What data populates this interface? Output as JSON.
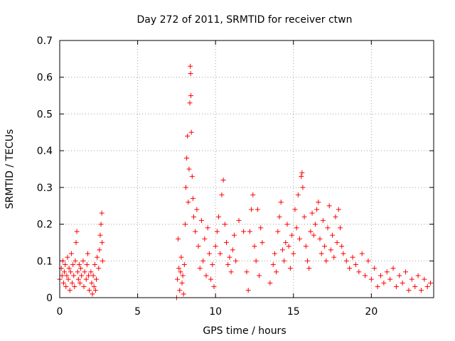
{
  "chart_data": {
    "type": "scatter",
    "title": "Day 272 of 2011, SRMTID for receiver ctwn",
    "xlabel": "GPS time / hours",
    "ylabel": "SRMTID / TECUs",
    "xlim": [
      0,
      24
    ],
    "ylim": [
      0,
      0.7
    ],
    "xticks": [
      0,
      5,
      10,
      15,
      20
    ],
    "xtick_labels": [
      "0",
      "5",
      "10",
      "15",
      "20"
    ],
    "yticks": [
      0,
      0.1,
      0.2,
      0.3,
      0.4,
      0.5,
      0.6,
      0.7
    ],
    "ytick_labels": [
      "0",
      "0.1",
      "0.2",
      "0.3",
      "0.4",
      "0.5",
      "0.6",
      "0.7"
    ],
    "grid": true,
    "marker": "+",
    "color": "#ff0000",
    "series": [
      {
        "name": "SRMTID",
        "points": [
          [
            0.0,
            0.05
          ],
          [
            0.1,
            0.08
          ],
          [
            0.15,
            0.06
          ],
          [
            0.2,
            0.1
          ],
          [
            0.25,
            0.04
          ],
          [
            0.3,
            0.07
          ],
          [
            0.35,
            0.09
          ],
          [
            0.4,
            0.03
          ],
          [
            0.45,
            0.06
          ],
          [
            0.5,
            0.11
          ],
          [
            0.55,
            0.05
          ],
          [
            0.6,
            0.08
          ],
          [
            0.65,
            0.02
          ],
          [
            0.7,
            0.07
          ],
          [
            0.75,
            0.12
          ],
          [
            0.8,
            0.04
          ],
          [
            0.85,
            0.09
          ],
          [
            0.9,
            0.06
          ],
          [
            0.95,
            0.03
          ],
          [
            1.0,
            0.1
          ],
          [
            1.05,
            0.15
          ],
          [
            1.1,
            0.18
          ],
          [
            1.15,
            0.07
          ],
          [
            1.2,
            0.05
          ],
          [
            1.25,
            0.09
          ],
          [
            1.3,
            0.04
          ],
          [
            1.35,
            0.08
          ],
          [
            1.4,
            0.06
          ],
          [
            1.5,
            0.1
          ],
          [
            1.55,
            0.03
          ],
          [
            1.6,
            0.07
          ],
          [
            1.7,
            0.05
          ],
          [
            1.75,
            0.09
          ],
          [
            1.8,
            0.12
          ],
          [
            1.85,
            0.06
          ],
          [
            1.9,
            0.02
          ],
          [
            2.0,
            0.07
          ],
          [
            2.05,
            0.04
          ],
          [
            2.1,
            0.01
          ],
          [
            2.15,
            0.06
          ],
          [
            2.2,
            0.03
          ],
          [
            2.25,
            0.09
          ],
          [
            2.3,
            0.02
          ],
          [
            2.35,
            0.05
          ],
          [
            2.4,
            0.11
          ],
          [
            2.5,
            0.08
          ],
          [
            2.55,
            0.13
          ],
          [
            2.6,
            0.17
          ],
          [
            2.65,
            0.2
          ],
          [
            2.7,
            0.23
          ],
          [
            2.72,
            0.15
          ],
          [
            2.75,
            0.1
          ],
          [
            7.5,
            0.0
          ],
          [
            7.55,
            0.05
          ],
          [
            7.6,
            0.16
          ],
          [
            7.65,
            0.08
          ],
          [
            7.7,
            0.02
          ],
          [
            7.75,
            0.07
          ],
          [
            7.8,
            0.11
          ],
          [
            7.85,
            0.04
          ],
          [
            7.9,
            0.06
          ],
          [
            7.95,
            0.01
          ],
          [
            8.0,
            0.09
          ],
          [
            8.05,
            0.2
          ],
          [
            8.1,
            0.3
          ],
          [
            8.15,
            0.38
          ],
          [
            8.2,
            0.44
          ],
          [
            8.25,
            0.26
          ],
          [
            8.3,
            0.35
          ],
          [
            8.35,
            0.53
          ],
          [
            8.38,
            0.63
          ],
          [
            8.4,
            0.61
          ],
          [
            8.42,
            0.55
          ],
          [
            8.45,
            0.45
          ],
          [
            8.5,
            0.33
          ],
          [
            8.55,
            0.27
          ],
          [
            8.6,
            0.22
          ],
          [
            8.7,
            0.18
          ],
          [
            8.8,
            0.24
          ],
          [
            8.9,
            0.14
          ],
          [
            9.0,
            0.08
          ],
          [
            9.1,
            0.21
          ],
          [
            9.2,
            0.1
          ],
          [
            9.3,
            0.16
          ],
          [
            9.4,
            0.06
          ],
          [
            9.5,
            0.19
          ],
          [
            9.6,
            0.12
          ],
          [
            9.7,
            0.05
          ],
          [
            9.8,
            0.09
          ],
          [
            9.9,
            0.03
          ],
          [
            10.0,
            0.14
          ],
          [
            10.1,
            0.18
          ],
          [
            10.2,
            0.22
          ],
          [
            10.3,
            0.12
          ],
          [
            10.4,
            0.28
          ],
          [
            10.5,
            0.32
          ],
          [
            10.6,
            0.2
          ],
          [
            10.7,
            0.15
          ],
          [
            10.8,
            0.09
          ],
          [
            10.9,
            0.11
          ],
          [
            11.0,
            0.07
          ],
          [
            11.1,
            0.13
          ],
          [
            11.2,
            0.17
          ],
          [
            11.3,
            0.1
          ],
          [
            11.5,
            0.21
          ],
          [
            11.8,
            0.18
          ],
          [
            12.0,
            0.07
          ],
          [
            12.1,
            0.02
          ],
          [
            12.2,
            0.18
          ],
          [
            12.3,
            0.24
          ],
          [
            12.4,
            0.28
          ],
          [
            12.5,
            0.14
          ],
          [
            12.6,
            0.1
          ],
          [
            12.7,
            0.24
          ],
          [
            12.8,
            0.06
          ],
          [
            12.9,
            0.19
          ],
          [
            13.0,
            0.15
          ],
          [
            13.5,
            0.04
          ],
          [
            13.7,
            0.09
          ],
          [
            13.8,
            0.12
          ],
          [
            13.9,
            0.07
          ],
          [
            14.0,
            0.18
          ],
          [
            14.1,
            0.22
          ],
          [
            14.2,
            0.26
          ],
          [
            14.3,
            0.13
          ],
          [
            14.4,
            0.1
          ],
          [
            14.5,
            0.15
          ],
          [
            14.6,
            0.2
          ],
          [
            14.7,
            0.14
          ],
          [
            14.8,
            0.08
          ],
          [
            14.9,
            0.17
          ],
          [
            15.0,
            0.12
          ],
          [
            15.1,
            0.24
          ],
          [
            15.2,
            0.19
          ],
          [
            15.3,
            0.28
          ],
          [
            15.4,
            0.16
          ],
          [
            15.5,
            0.33
          ],
          [
            15.55,
            0.34
          ],
          [
            15.6,
            0.3
          ],
          [
            15.7,
            0.22
          ],
          [
            15.8,
            0.14
          ],
          [
            15.9,
            0.1
          ],
          [
            16.0,
            0.08
          ],
          [
            16.1,
            0.18
          ],
          [
            16.2,
            0.23
          ],
          [
            16.3,
            0.17
          ],
          [
            16.4,
            0.2
          ],
          [
            16.5,
            0.24
          ],
          [
            16.6,
            0.26
          ],
          [
            16.7,
            0.16
          ],
          [
            16.8,
            0.12
          ],
          [
            16.9,
            0.21
          ],
          [
            17.0,
            0.14
          ],
          [
            17.1,
            0.1
          ],
          [
            17.2,
            0.19
          ],
          [
            17.3,
            0.25
          ],
          [
            17.4,
            0.13
          ],
          [
            17.5,
            0.17
          ],
          [
            17.6,
            0.11
          ],
          [
            17.7,
            0.22
          ],
          [
            17.8,
            0.15
          ],
          [
            17.9,
            0.24
          ],
          [
            18.0,
            0.19
          ],
          [
            18.1,
            0.14
          ],
          [
            18.2,
            0.12
          ],
          [
            18.4,
            0.1
          ],
          [
            18.6,
            0.08
          ],
          [
            18.8,
            0.11
          ],
          [
            19.0,
            0.09
          ],
          [
            19.2,
            0.07
          ],
          [
            19.4,
            0.12
          ],
          [
            19.6,
            0.06
          ],
          [
            19.8,
            0.1
          ],
          [
            20.0,
            0.05
          ],
          [
            20.2,
            0.08
          ],
          [
            20.4,
            0.03
          ],
          [
            20.6,
            0.06
          ],
          [
            20.8,
            0.04
          ],
          [
            21.0,
            0.07
          ],
          [
            21.2,
            0.05
          ],
          [
            21.4,
            0.08
          ],
          [
            21.6,
            0.03
          ],
          [
            21.8,
            0.06
          ],
          [
            22.0,
            0.04
          ],
          [
            22.2,
            0.07
          ],
          [
            22.4,
            0.02
          ],
          [
            22.6,
            0.05
          ],
          [
            22.8,
            0.03
          ],
          [
            23.0,
            0.06
          ],
          [
            23.2,
            0.02
          ],
          [
            23.4,
            0.05
          ],
          [
            23.6,
            0.03
          ],
          [
            23.8,
            0.04
          ]
        ]
      }
    ]
  }
}
